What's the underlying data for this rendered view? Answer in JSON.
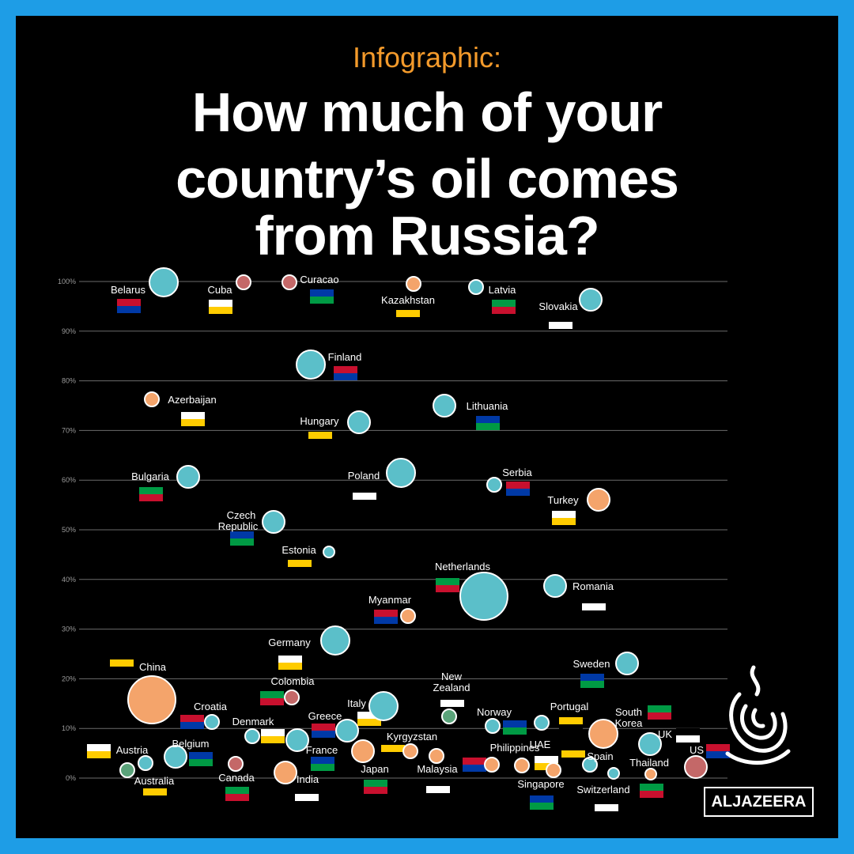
{
  "header": {
    "kicker": "Infographic:",
    "title_lines": [
      "How much of your",
      "country’s oil comes",
      "from Russia?"
    ]
  },
  "logo": {
    "text": "ALJAZEERA"
  },
  "colors": {
    "background": "#000000",
    "frame": "#1e9de6",
    "teal": "#5bbfc9",
    "orange": "#f4a46b",
    "red": "#c96a6a",
    "green": "#5aa37a",
    "grid": "#6b6b6b",
    "accent": "#f39a2b"
  },
  "chart_data": {
    "type": "scatter",
    "title": "How much of your country’s oil comes from Russia?",
    "xlabel": "",
    "ylabel": "",
    "ylim": [
      0,
      100
    ],
    "yticks": [
      "0%",
      "10%",
      "20%",
      "30%",
      "40%",
      "50%",
      "60%",
      "70%",
      "80%",
      "90%",
      "100%"
    ],
    "grid": true,
    "points": [
      {
        "label": "Belarus",
        "value": 100,
        "color": "teal",
        "size": "large"
      },
      {
        "label": "Cuba",
        "value": 100,
        "color": "red",
        "size": "small"
      },
      {
        "label": "Curacao",
        "value": 100,
        "color": "red",
        "size": "small"
      },
      {
        "label": "Kazakhstan",
        "value": 100,
        "color": "orange",
        "size": "small"
      },
      {
        "label": "Latvia",
        "value": 99,
        "color": "teal",
        "size": "small"
      },
      {
        "label": "Slovakia",
        "value": 96,
        "color": "teal",
        "size": "medium"
      },
      {
        "label": "Finland",
        "value": 84,
        "color": "teal",
        "size": "large"
      },
      {
        "label": "Azerbaijan",
        "value": 76,
        "color": "orange",
        "size": "small"
      },
      {
        "label": "Lithuania",
        "value": 75,
        "color": "teal",
        "size": "medium"
      },
      {
        "label": "Hungary",
        "value": 72,
        "color": "teal",
        "size": "medium"
      },
      {
        "label": "Bulgaria",
        "value": 61,
        "color": "teal",
        "size": "medium"
      },
      {
        "label": "Poland",
        "value": 62,
        "color": "teal",
        "size": "large"
      },
      {
        "label": "Serbia",
        "value": 59,
        "color": "teal",
        "size": "small"
      },
      {
        "label": "Turkey",
        "value": 56,
        "color": "orange",
        "size": "medium"
      },
      {
        "label": "Czech Republic",
        "value": 52,
        "color": "teal",
        "size": "medium"
      },
      {
        "label": "Estonia",
        "value": 46,
        "color": "teal",
        "size": "tiny"
      },
      {
        "label": "Netherlands",
        "value": 37,
        "color": "teal",
        "size": "xlarge"
      },
      {
        "label": "Romania",
        "value": 39,
        "color": "teal",
        "size": "medium"
      },
      {
        "label": "Myanmar",
        "value": 33,
        "color": "orange",
        "size": "small"
      },
      {
        "label": "Germany",
        "value": 28,
        "color": "teal",
        "size": "large"
      },
      {
        "label": "Sweden",
        "value": 23,
        "color": "teal",
        "size": "medium"
      },
      {
        "label": "China",
        "value": 16,
        "color": "orange",
        "size": "xlarge"
      },
      {
        "label": "Colombia",
        "value": 16,
        "color": "red",
        "size": "small"
      },
      {
        "label": "New Zealand",
        "value": 13,
        "color": "green",
        "size": "small"
      },
      {
        "label": "Croatia",
        "value": 12,
        "color": "teal",
        "size": "small"
      },
      {
        "label": "Italy",
        "value": 15,
        "color": "teal",
        "size": "large"
      },
      {
        "label": "Norway",
        "value": 11,
        "color": "teal",
        "size": "small"
      },
      {
        "label": "Portugal",
        "value": 12,
        "color": "teal",
        "size": "small"
      },
      {
        "label": "South Korea",
        "value": 9,
        "color": "orange",
        "size": "large"
      },
      {
        "label": "UK",
        "value": 7,
        "color": "teal",
        "size": "medium"
      },
      {
        "label": "Greece",
        "value": 10,
        "color": "teal",
        "size": "medium"
      },
      {
        "label": "Denmark",
        "value": 9,
        "color": "teal",
        "size": "small"
      },
      {
        "label": "France",
        "value": 8,
        "color": "teal",
        "size": "medium"
      },
      {
        "label": "Kyrgyzstan",
        "value": 5,
        "color": "orange",
        "size": "small"
      },
      {
        "label": "Japan",
        "value": 5,
        "color": "orange",
        "size": "medium"
      },
      {
        "label": "Malaysia",
        "value": 4,
        "color": "orange",
        "size": "small"
      },
      {
        "label": "Philippines",
        "value": 3,
        "color": "orange",
        "size": "small"
      },
      {
        "label": "UAE",
        "value": 2,
        "color": "orange",
        "size": "small"
      },
      {
        "label": "Singapore",
        "value": 2,
        "color": "orange",
        "size": "small"
      },
      {
        "label": "Spain",
        "value": 3,
        "color": "teal",
        "size": "small"
      },
      {
        "label": "Thailand",
        "value": 1,
        "color": "orange",
        "size": "tiny"
      },
      {
        "label": "Switzerland",
        "value": 1,
        "color": "teal",
        "size": "tiny"
      },
      {
        "label": "US",
        "value": 2,
        "color": "red",
        "size": "medium"
      },
      {
        "label": "Austria",
        "value": 3,
        "color": "teal",
        "size": "small"
      },
      {
        "label": "Belgium",
        "value": 4,
        "color": "teal",
        "size": "medium"
      },
      {
        "label": "Australia",
        "value": 1,
        "color": "green",
        "size": "small"
      },
      {
        "label": "Canada",
        "value": 3,
        "color": "red",
        "size": "small"
      },
      {
        "label": "India",
        "value": 1,
        "color": "orange",
        "size": "medium"
      }
    ]
  }
}
